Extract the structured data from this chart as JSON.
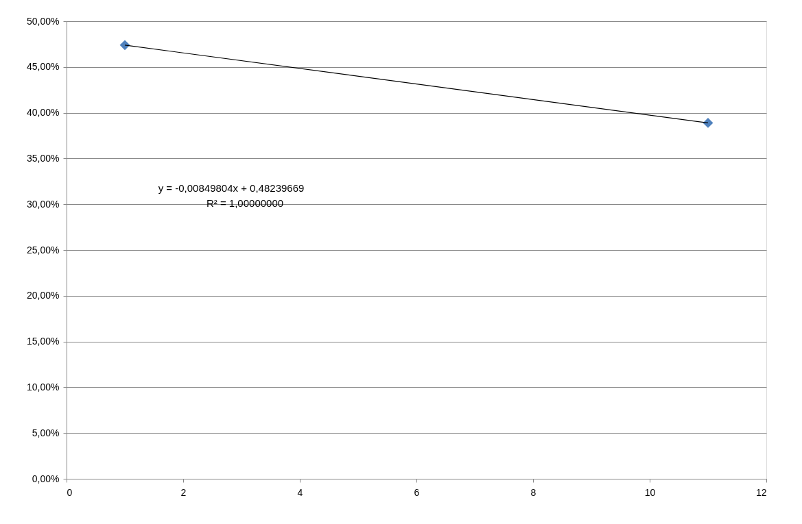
{
  "chart_data": {
    "type": "scatter",
    "xlim": [
      0,
      12
    ],
    "xticks": [
      0,
      2,
      4,
      6,
      8,
      10,
      12
    ],
    "ylim": [
      0,
      50
    ],
    "yticks": [
      {
        "value": 0,
        "label": "0,00%"
      },
      {
        "value": 5,
        "label": "5,00%"
      },
      {
        "value": 10,
        "label": "10,00%"
      },
      {
        "value": 15,
        "label": "15,00%"
      },
      {
        "value": 20,
        "label": "20,00%"
      },
      {
        "value": 25,
        "label": "25,00%"
      },
      {
        "value": 30,
        "label": "30,00%"
      },
      {
        "value": 35,
        "label": "35,00%"
      },
      {
        "value": 40,
        "label": "40,00%"
      },
      {
        "value": 45,
        "label": "45,00%"
      },
      {
        "value": 50,
        "label": "50,00%"
      }
    ],
    "grid": "y",
    "x": [
      1,
      11
    ],
    "series": [
      {
        "values": [
          47.39,
          38.89
        ],
        "color": "#4f81bd",
        "marker": "diamond"
      },
      {
        "type": "line",
        "values": [
          47.39,
          38.89
        ],
        "color": "#000000",
        "marker": "none",
        "line_style": "solid"
      }
    ],
    "annotations": [
      "y = -0,00849804x + 0,48239669",
      "R² = 1,00000000"
    ]
  }
}
